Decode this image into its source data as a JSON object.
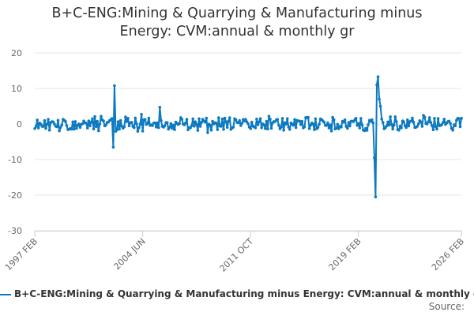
{
  "chart_data": {
    "type": "line",
    "title_lines": [
      "B+C-ENG:Mining & Quarrying & Manufacturing minus",
      "Energy: CVM:annual & monthly gr"
    ],
    "xlabel": "",
    "ylabel": "",
    "x_range": [
      1997.08,
      2026.08
    ],
    "ylim": [
      -30,
      20
    ],
    "y_ticks": [
      20,
      10,
      0,
      -10,
      -20,
      -30
    ],
    "x_ticks": [
      {
        "label": "1997 FEB",
        "value": 1997.08
      },
      {
        "label": "2004 JUN",
        "value": 2004.42
      },
      {
        "label": "2011 OCT",
        "value": 2011.75
      },
      {
        "label": "2019 FEB",
        "value": 2019.08
      },
      {
        "label": "2026 FEB",
        "value": 2026.08
      }
    ],
    "grid": true,
    "series": [
      {
        "name": "B+C-ENG:Mining & Quarrying & Manufacturing minus Energy: CVM:annual & monthly gr",
        "color": "#0c79c0",
        "note": "monthly values; background noise approximately within ±2.5, notable points listed",
        "notable_points": [
          {
            "date": "2002-06",
            "value": -6.5
          },
          {
            "date": "2002-07",
            "value": 10.8
          },
          {
            "date": "2005-08",
            "value": 4.7
          },
          {
            "date": "2020-03",
            "value": -9.5
          },
          {
            "date": "2020-04",
            "value": -20.5
          },
          {
            "date": "2020-05",
            "value": 11.0
          },
          {
            "date": "2020-06",
            "value": 13.3
          },
          {
            "date": "2020-07",
            "value": 7.0
          },
          {
            "date": "2020-08",
            "value": 5.0
          }
        ]
      }
    ]
  },
  "legend": {
    "label": "B+C-ENG:Mining & Quarrying & Manufacturing minus Energy: CVM:annual & monthly gr"
  },
  "footer": {
    "source_label": "Source:"
  }
}
